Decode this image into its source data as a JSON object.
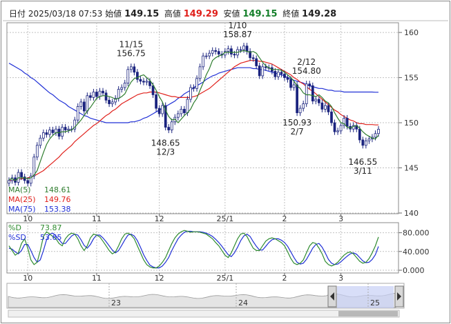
{
  "header": {
    "date_label": "日付",
    "datetime": "2025/03/18 07:53",
    "open_label": "始値",
    "open": "149.15",
    "high_label": "高値",
    "high": "149.29",
    "low_label": "安値",
    "low": "149.15",
    "close_label": "終値",
    "close": "149.28"
  },
  "colors": {
    "ma5": "#2e7d2e",
    "ma25": "#e0201b",
    "ma75": "#1f2fd6",
    "candle": "#1a237e",
    "pct_d": "#2e8b2e",
    "pct_sd": "#1f2fd6"
  },
  "legend": [
    {
      "label": "MA(5)",
      "value": "148.61"
    },
    {
      "label": "MA(25)",
      "value": "149.76"
    },
    {
      "label": "MA(75)",
      "value": "153.38"
    }
  ],
  "stoch_legend": [
    {
      "label": "%D",
      "value": "73.87"
    },
    {
      "label": "%SD",
      "value": "53.65"
    }
  ],
  "chart_data": {
    "type": "candlestick",
    "ylim": [
      140,
      161
    ],
    "yticks": [
      "160",
      "155",
      "150",
      "145",
      "140"
    ],
    "xticks": [
      "10",
      "11",
      "12",
      "25/1",
      "2",
      "3"
    ],
    "xticks2": [
      "10",
      "11",
      "12",
      "25/1",
      "2",
      "3"
    ],
    "annotations": [
      {
        "date_label": "11/15",
        "value": "156.75",
        "index": 39,
        "kind": "high"
      },
      {
        "date_label": "12/3",
        "value": "148.65",
        "index": 50,
        "kind": "low"
      },
      {
        "date_label": "1/10",
        "value": "158.87",
        "index": 73,
        "kind": "high"
      },
      {
        "date_label": "2/12",
        "value": "154.80",
        "index": 95,
        "kind": "high"
      },
      {
        "date_label": "2/7",
        "value": "150.93",
        "index": 92,
        "kind": "low"
      },
      {
        "date_label": "3/11",
        "value": "146.55",
        "index": 113,
        "kind": "low"
      }
    ],
    "close": [
      143.6,
      143.9,
      143.4,
      144.5,
      144.0,
      143.6,
      143.3,
      144.1,
      146.2,
      147.5,
      148.3,
      148.9,
      148.7,
      149.2,
      148.9,
      149.3,
      148.5,
      149.5,
      149.2,
      149.3,
      149.3,
      150.3,
      151.8,
      152.3,
      151.3,
      153.0,
      152.8,
      153.4,
      152.9,
      153.5,
      153.3,
      152.5,
      152.1,
      152.3,
      152.7,
      153.7,
      153.9,
      154.4,
      155.9,
      156.2,
      155.6,
      154.8,
      154.6,
      154.5,
      154.6,
      154.1,
      153.1,
      151.6,
      151.0,
      151.9,
      149.5,
      149.2,
      150.1,
      150.6,
      151.0,
      151.5,
      151.1,
      152.6,
      153.9,
      153.8,
      154.9,
      156.2,
      157.4,
      157.4,
      157.7,
      158.0,
      157.9,
      157.6,
      157.5,
      157.9,
      158.2,
      157.6,
      157.5,
      158.1,
      158.1,
      158.5,
      157.9,
      157.2,
      157.1,
      156.3,
      155.2,
      156.2,
      156.1,
      156.1,
      155.7,
      155.1,
      155.6,
      155.4,
      155.0,
      154.8,
      153.9,
      154.2,
      151.1,
      151.6,
      152.1,
      154.3,
      154.1,
      152.4,
      152.6,
      152.2,
      151.5,
      151.9,
      151.2,
      150.0,
      149.0,
      149.1,
      149.7,
      150.5,
      149.6,
      149.3,
      149.7,
      149.3,
      148.1,
      147.5,
      148.0,
      148.2,
      148.4,
      148.8,
      149.28
    ],
    "ma5": [
      143.7,
      143.8,
      143.6,
      143.9,
      143.9,
      143.9,
      143.8,
      143.9,
      144.2,
      144.7,
      145.7,
      146.7,
      147.6,
      148.2,
      148.6,
      148.9,
      148.9,
      149.0,
      149.0,
      149.1,
      149.2,
      149.5,
      149.9,
      150.3,
      150.8,
      151.3,
      151.7,
      152.2,
      152.7,
      152.9,
      153.0,
      153.0,
      152.9,
      152.8,
      152.6,
      152.7,
      152.9,
      153.2,
      153.9,
      154.5,
      154.9,
      155.0,
      155.2,
      155.3,
      155.0,
      154.7,
      154.2,
      153.6,
      152.9,
      152.3,
      151.4,
      150.7,
      150.3,
      150.4,
      150.0,
      150.4,
      150.8,
      151.1,
      151.5,
      152.2,
      152.7,
      153.6,
      154.4,
      155.3,
      156.0,
      156.9,
      157.2,
      157.4,
      157.5,
      157.8,
      157.8,
      157.8,
      157.8,
      157.8,
      157.9,
      158.0,
      157.9,
      157.8,
      157.9,
      157.7,
      157.2,
      156.7,
      156.3,
      156.1,
      155.9,
      155.9,
      155.9,
      155.8,
      155.6,
      155.3,
      155.0,
      154.6,
      154.1,
      153.8,
      153.3,
      153.1,
      153.1,
      153.0,
      152.9,
      153.1,
      152.8,
      152.4,
      152.2,
      151.8,
      151.1,
      150.5,
      150.0,
      149.9,
      149.5,
      149.4,
      149.6,
      149.7,
      149.4,
      149.0,
      148.7,
      148.5,
      148.3,
      148.2,
      148.61
    ],
    "ma25": [
      143.6,
      143.6,
      143.7,
      143.7,
      143.8,
      143.8,
      143.9,
      144.0,
      144.1,
      144.3,
      144.5,
      144.7,
      145.0,
      145.3,
      145.6,
      145.9,
      146.2,
      146.6,
      146.9,
      147.2,
      147.5,
      147.9,
      148.2,
      148.5,
      148.8,
      149.1,
      149.4,
      149.7,
      149.9,
      150.2,
      150.5,
      150.8,
      151.0,
      151.3,
      151.5,
      151.8,
      152.1,
      152.3,
      152.5,
      152.7,
      152.9,
      153.1,
      153.2,
      153.3,
      153.3,
      153.4,
      153.4,
      153.4,
      153.3,
      153.2,
      153.1,
      153.0,
      152.9,
      152.9,
      152.8,
      152.8,
      152.8,
      152.8,
      152.8,
      152.9,
      153.0,
      153.2,
      153.4,
      153.6,
      153.8,
      154.1,
      154.4,
      154.7,
      155.0,
      155.3,
      155.6,
      155.9,
      156.2,
      156.4,
      156.6,
      156.7,
      156.8,
      156.9,
      156.9,
      156.9,
      156.8,
      156.8,
      156.7,
      156.6,
      156.5,
      156.3,
      156.1,
      155.9,
      155.7,
      155.5,
      155.3,
      155.0,
      154.8,
      154.5,
      154.3,
      154.0,
      153.7,
      153.5,
      153.2,
      152.9,
      152.6,
      152.3,
      152.0,
      151.7,
      151.4,
      151.2,
      150.9,
      150.7,
      150.5,
      150.3,
      150.2,
      150.0,
      149.9,
      149.9,
      149.8,
      149.8,
      149.8,
      149.76,
      149.76
    ],
    "ma75": [
      156.6,
      156.4,
      156.2,
      156.0,
      155.8,
      155.5,
      155.3,
      155.0,
      154.8,
      154.5,
      154.2,
      153.9,
      153.6,
      153.3,
      153.1,
      152.8,
      152.5,
      152.3,
      152.1,
      151.8,
      151.6,
      151.4,
      151.2,
      151.0,
      150.8,
      150.7,
      150.5,
      150.4,
      150.3,
      150.2,
      150.1,
      150.0,
      150.0,
      150.0,
      150.0,
      150.0,
      150.0,
      150.0,
      150.0,
      150.1,
      150.1,
      150.2,
      150.3,
      150.5,
      150.6,
      150.8,
      151.0,
      151.2,
      151.4,
      151.6,
      151.8,
      152.0,
      152.2,
      152.4,
      152.7,
      152.9,
      153.2,
      153.4,
      153.6,
      153.9,
      154.1,
      154.3,
      154.5,
      154.8,
      155.0,
      155.2,
      155.3,
      155.5,
      155.6,
      155.7,
      155.8,
      155.9,
      156.0,
      156.1,
      156.1,
      156.1,
      156.1,
      156.1,
      156.0,
      156.0,
      155.9,
      155.9,
      155.8,
      155.7,
      155.6,
      155.5,
      155.4,
      155.3,
      155.2,
      155.0,
      154.9,
      154.7,
      154.6,
      154.5,
      154.4,
      154.2,
      154.1,
      154.0,
      153.9,
      153.8,
      153.8,
      153.7,
      153.6,
      153.6,
      153.5,
      153.5,
      153.5,
      153.4,
      153.4,
      153.4,
      153.4,
      153.4,
      153.4,
      153.4,
      153.4,
      153.4,
      153.4,
      153.38,
      153.38
    ],
    "stoch_ylim": [
      0,
      100
    ],
    "stoch_yticks": [
      "80.000",
      "40.000",
      "0.000"
    ],
    "stoch_d": [
      55,
      45,
      35,
      40,
      60,
      70,
      50,
      25,
      15,
      20,
      45,
      75,
      85,
      80,
      75,
      70,
      60,
      55,
      70,
      78,
      82,
      80,
      70,
      55,
      45,
      55,
      72,
      80,
      78,
      74,
      65,
      55,
      45,
      38,
      42,
      55,
      70,
      80,
      82,
      78,
      70,
      55,
      40,
      25,
      15,
      10,
      8,
      8,
      12,
      20,
      30,
      45,
      60,
      72,
      80,
      85,
      88,
      86,
      84,
      85,
      85,
      84,
      82,
      80,
      75,
      70,
      62,
      55,
      45,
      35,
      30,
      40,
      55,
      70,
      80,
      82,
      75,
      62,
      50,
      45,
      45,
      55,
      65,
      70,
      72,
      70,
      66,
      62,
      55,
      42,
      28,
      18,
      15,
      18,
      25,
      40,
      55,
      62,
      60,
      50,
      38,
      22,
      15,
      12,
      15,
      20,
      28,
      35,
      40,
      42,
      38,
      30,
      22,
      18,
      20,
      28,
      40,
      55,
      73.87
    ],
    "stoch_sd": [
      50,
      48,
      42,
      38,
      45,
      58,
      58,
      45,
      30,
      20,
      25,
      45,
      68,
      80,
      82,
      76,
      68,
      60,
      60,
      68,
      76,
      80,
      78,
      68,
      56,
      50,
      58,
      70,
      78,
      78,
      72,
      64,
      55,
      46,
      40,
      45,
      56,
      68,
      78,
      80,
      76,
      66,
      52,
      36,
      24,
      14,
      10,
      8,
      8,
      12,
      20,
      30,
      45,
      58,
      70,
      78,
      84,
      86,
      86,
      85,
      85,
      85,
      84,
      82,
      79,
      75,
      69,
      62,
      54,
      45,
      36,
      32,
      40,
      52,
      66,
      76,
      80,
      75,
      64,
      54,
      46,
      46,
      54,
      62,
      68,
      70,
      70,
      67,
      62,
      54,
      42,
      30,
      20,
      16,
      18,
      26,
      38,
      50,
      58,
      60,
      52,
      40,
      26,
      18,
      15,
      16,
      21,
      27,
      33,
      38,
      40,
      37,
      30,
      23,
      19,
      20,
      26,
      36,
      53.65
    ],
    "overview_labels": [
      "23",
      "24",
      "25"
    ]
  }
}
